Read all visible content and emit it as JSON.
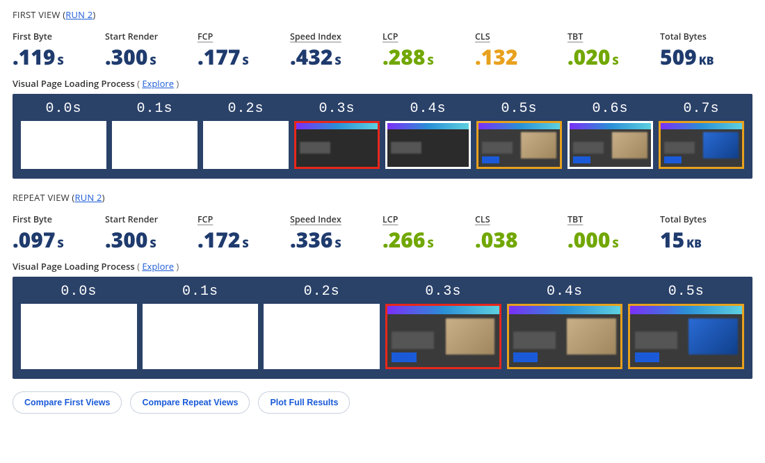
{
  "colors": {
    "navy": "#1f3b6e",
    "green": "#71a702",
    "orange": "#e8a11d",
    "filmstrip_bg": "#2a4168",
    "link": "#1a5ad8",
    "frame_red": "#e8271a",
    "frame_orange": "#e8a11d"
  },
  "sections": [
    {
      "id": "first",
      "title_prefix": "FIRST VIEW",
      "run_label": "RUN 2",
      "metrics": [
        {
          "label": "First Byte",
          "underline": false,
          "value": ".119",
          "unit": "S",
          "color": "navy"
        },
        {
          "label": "Start Render",
          "underline": false,
          "value": ".300",
          "unit": "S",
          "color": "navy"
        },
        {
          "label": "FCP",
          "underline": true,
          "value": ".177",
          "unit": "S",
          "color": "navy"
        },
        {
          "label": "Speed Index",
          "underline": true,
          "value": ".432",
          "unit": "S",
          "color": "navy"
        },
        {
          "label": "LCP",
          "underline": true,
          "value": ".288",
          "unit": "S",
          "color": "green"
        },
        {
          "label": "CLS",
          "underline": true,
          "value": ".132",
          "unit": "",
          "color": "orange"
        },
        {
          "label": "TBT",
          "underline": true,
          "value": ".020",
          "unit": "S",
          "color": "green"
        },
        {
          "label": "Total Bytes",
          "underline": false,
          "value": "509",
          "unit": "KB",
          "color": "navy"
        }
      ],
      "filmstrip_label": "Visual Page Loading Process",
      "explore_label": "Explore",
      "frames": [
        {
          "t": "0.0s",
          "type": "blank",
          "hl": ""
        },
        {
          "t": "0.1s",
          "type": "blank",
          "hl": ""
        },
        {
          "t": "0.2s",
          "type": "blank",
          "hl": ""
        },
        {
          "t": "0.3s",
          "type": "dark",
          "hl": "red"
        },
        {
          "t": "0.4s",
          "type": "dark",
          "hl": ""
        },
        {
          "t": "0.5s",
          "type": "full",
          "hl": "orange"
        },
        {
          "t": "0.6s",
          "type": "full",
          "hl": ""
        },
        {
          "t": "0.7s",
          "type": "full2",
          "hl": "orange"
        }
      ]
    },
    {
      "id": "repeat",
      "title_prefix": "REPEAT VIEW",
      "run_label": "RUN 2",
      "metrics": [
        {
          "label": "First Byte",
          "underline": false,
          "value": ".097",
          "unit": "S",
          "color": "navy"
        },
        {
          "label": "Start Render",
          "underline": false,
          "value": ".300",
          "unit": "S",
          "color": "navy"
        },
        {
          "label": "FCP",
          "underline": true,
          "value": ".172",
          "unit": "S",
          "color": "navy"
        },
        {
          "label": "Speed Index",
          "underline": true,
          "value": ".336",
          "unit": "S",
          "color": "navy"
        },
        {
          "label": "LCP",
          "underline": true,
          "value": ".266",
          "unit": "S",
          "color": "green"
        },
        {
          "label": "CLS",
          "underline": true,
          "value": ".038",
          "unit": "",
          "color": "green"
        },
        {
          "label": "TBT",
          "underline": true,
          "value": ".000",
          "unit": "S",
          "color": "green"
        },
        {
          "label": "Total Bytes",
          "underline": false,
          "value": "15",
          "unit": "KB",
          "color": "navy"
        }
      ],
      "filmstrip_label": "Visual Page Loading Process",
      "explore_label": "Explore",
      "frames": [
        {
          "t": "0.0s",
          "type": "blank",
          "hl": ""
        },
        {
          "t": "0.1s",
          "type": "blank",
          "hl": ""
        },
        {
          "t": "0.2s",
          "type": "blank",
          "hl": ""
        },
        {
          "t": "0.3s",
          "type": "full",
          "hl": "red"
        },
        {
          "t": "0.4s",
          "type": "full",
          "hl": "orange"
        },
        {
          "t": "0.5s",
          "type": "full2",
          "hl": "orange"
        }
      ]
    }
  ],
  "buttons": {
    "compare_first": "Compare First Views",
    "compare_repeat": "Compare Repeat Views",
    "plot_full": "Plot Full Results"
  }
}
